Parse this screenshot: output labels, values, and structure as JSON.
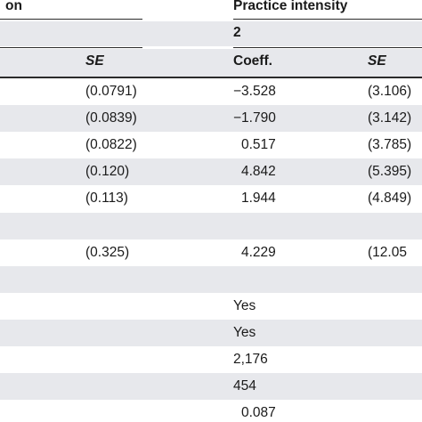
{
  "header": {
    "left_label": "on",
    "right_label": "Practice intensity",
    "column_number": "2",
    "col_se_left": "SE",
    "col_coeff": "Coeff.",
    "col_se_right": "SE"
  },
  "rows": [
    {
      "se1": "(0.0791)",
      "coeff": "−3.528",
      "se2": "(3.106)",
      "shaded": false
    },
    {
      "se1": "(0.0839)",
      "coeff": "−1.790",
      "se2": "(3.142)",
      "shaded": true
    },
    {
      "se1": "(0.0822)",
      "coeff": "0.517",
      "se2": "(3.785)",
      "shaded": false
    },
    {
      "se1": "(0.120)",
      "coeff": "4.842",
      "se2": "(5.395)",
      "shaded": true
    },
    {
      "se1": "(0.113)",
      "coeff": "1.944",
      "se2": "(4.849)",
      "shaded": false
    },
    {
      "se1": "",
      "coeff": "",
      "se2": "",
      "shaded": true
    },
    {
      "se1": "(0.325)",
      "coeff": "4.229",
      "se2": "(12.05",
      "shaded": false
    },
    {
      "se1": "",
      "coeff": "",
      "se2": "",
      "shaded": true
    },
    {
      "se1": "",
      "coeff": "Yes",
      "se2": "",
      "shaded": false
    },
    {
      "se1": "",
      "coeff": "Yes",
      "se2": "",
      "shaded": true
    },
    {
      "se1": "",
      "coeff": "2,176",
      "se2": "",
      "shaded": false
    },
    {
      "se1": "",
      "coeff": "454",
      "se2": "",
      "shaded": true
    },
    {
      "se1": "",
      "coeff": "0.087",
      "se2": "",
      "shaded": false
    }
  ]
}
